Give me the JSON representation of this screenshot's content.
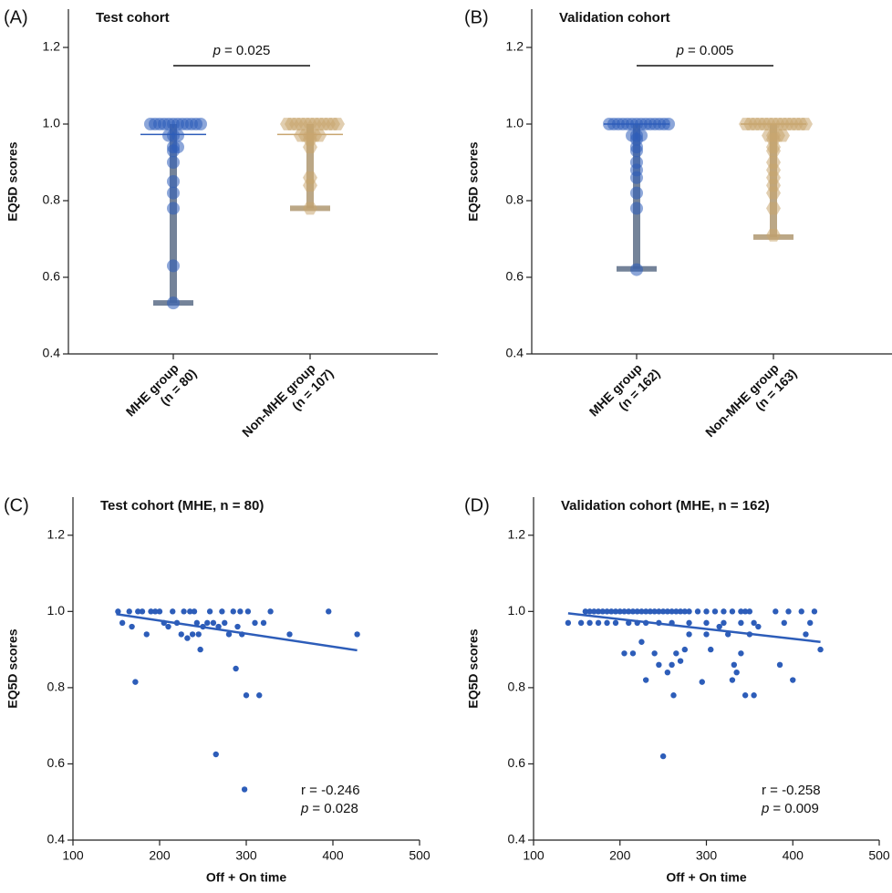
{
  "chart_data": [
    {
      "type": "strip",
      "panel_label": "(A)",
      "title": "Test cohort",
      "ylabel": "EQ5D scores",
      "categories": [
        [
          "MHE group",
          "(n = 80)"
        ],
        [
          "Non-MHE group",
          "(n = 107)"
        ]
      ],
      "ylim": [
        0.4,
        1.3
      ],
      "yticks": [
        0.4,
        0.6,
        0.8,
        {
          "value": 1,
          "label": "1.0"
        },
        1.2
      ],
      "comparison": {
        "symbol": "p",
        "text": "= 0.025"
      },
      "series": [
        {
          "color": "#2d5db9",
          "bar_color": "#5c6e88",
          "marker": "circle",
          "values": [
            1,
            1,
            1,
            1,
            1,
            1,
            1,
            1,
            1,
            1,
            1,
            1,
            0.97,
            0.97,
            0.97,
            0.94,
            0.94,
            0.93,
            0.9,
            0.85,
            0.82,
            0.78,
            0.63,
            0.533
          ],
          "center": 0.973,
          "low": 0.533,
          "high": 1
        },
        {
          "color": "#c8a56f",
          "bar_color": "#b09872",
          "marker": "hexagon",
          "values": [
            1,
            1,
            1,
            1,
            1,
            1,
            1,
            1,
            1,
            1,
            1,
            1,
            0.97,
            0.97,
            0.97,
            0.97,
            0.97,
            0.96,
            0.94,
            0.86,
            0.84,
            0.78
          ],
          "center": 0.973,
          "low": 0.78,
          "high": 1
        }
      ]
    },
    {
      "type": "strip",
      "panel_label": "(B)",
      "title": "Validation cohort",
      "ylabel": "EQ5D scores",
      "categories": [
        [
          "MHE group",
          "(n = 162)"
        ],
        [
          "Non-MHE group",
          "(n = 163)"
        ]
      ],
      "ylim": [
        0.4,
        1.3
      ],
      "yticks": [
        0.4,
        0.6,
        0.8,
        {
          "value": 1,
          "label": "1.0"
        },
        1.2
      ],
      "comparison": {
        "symbol": "p",
        "text": "= 0.005"
      },
      "series": [
        {
          "color": "#2d5db9",
          "bar_color": "#5c6e88",
          "marker": "circle",
          "values": [
            1,
            1,
            1,
            1,
            1,
            1,
            1,
            1,
            1,
            1,
            1,
            1,
            1,
            1,
            0.97,
            0.97,
            0.97,
            0.96,
            0.94,
            0.93,
            0.9,
            0.88,
            0.86,
            0.82,
            0.78,
            0.62
          ],
          "center": 1,
          "low": 0.622,
          "high": 1
        },
        {
          "color": "#c8a56f",
          "bar_color": "#b09872",
          "marker": "hexagon",
          "values": [
            1,
            1,
            1,
            1,
            1,
            1,
            1,
            1,
            1,
            1,
            1,
            1,
            1,
            1,
            0.97,
            0.97,
            0.97,
            0.97,
            0.96,
            0.94,
            0.93,
            0.9,
            0.88,
            0.86,
            0.84,
            0.82,
            0.78,
            0.71
          ],
          "center": 1,
          "low": 0.705,
          "high": 1
        }
      ]
    },
    {
      "type": "scatter",
      "panel_label": "(C)",
      "title": "Test cohort (MHE, n = 80)",
      "ylabel": "EQ5D scores",
      "xlabel": "Off + On time",
      "xlim": [
        100,
        500
      ],
      "xticks": [
        100,
        200,
        300,
        400,
        500
      ],
      "ylim": [
        0.4,
        1.3
      ],
      "yticks": [
        0.4,
        0.6,
        0.8,
        {
          "value": 1,
          "label": "1.0"
        },
        1.2
      ],
      "color": "#2d5db9",
      "x": [
        152,
        157,
        165,
        168,
        172,
        175,
        180,
        185,
        190,
        195,
        200,
        205,
        210,
        215,
        220,
        225,
        228,
        232,
        235,
        238,
        240,
        243,
        245,
        247,
        250,
        255,
        258,
        262,
        265,
        268,
        272,
        275,
        280,
        285,
        288,
        290,
        293,
        295,
        298,
        300,
        302,
        310,
        315,
        320,
        328,
        350,
        395,
        428
      ],
      "y": [
        1,
        0.97,
        1,
        0.96,
        0.815,
        1,
        1,
        0.94,
        1,
        1,
        1,
        0.97,
        0.96,
        1,
        0.97,
        0.94,
        1,
        0.93,
        1,
        0.94,
        1,
        0.97,
        0.94,
        0.9,
        0.96,
        0.97,
        1,
        0.97,
        0.625,
        0.96,
        1,
        0.97,
        0.94,
        1,
        0.85,
        0.96,
        1,
        0.94,
        0.533,
        0.78,
        1,
        0.97,
        0.78,
        0.97,
        1,
        0.94,
        1,
        0.94
      ],
      "fit": {
        "x": [
          150,
          428
        ],
        "y": [
          0.993,
          0.898
        ]
      },
      "r_label": "r = -0.246",
      "p_annotation": {
        "symbol": "p",
        "text": "= 0.028"
      }
    },
    {
      "type": "scatter",
      "panel_label": "(D)",
      "title": "Validation cohort (MHE, n = 162)",
      "ylabel": "EQ5D scores",
      "xlabel": "Off + On time",
      "xlim": [
        100,
        500
      ],
      "xticks": [
        100,
        200,
        300,
        400,
        500
      ],
      "ylim": [
        0.4,
        1.3
      ],
      "yticks": [
        0.4,
        0.6,
        0.8,
        {
          "value": 1,
          "label": "1.0"
        },
        1.2
      ],
      "color": "#2d5db9",
      "x": [
        160,
        165,
        170,
        175,
        180,
        185,
        190,
        195,
        200,
        205,
        210,
        215,
        220,
        225,
        230,
        235,
        240,
        245,
        250,
        255,
        260,
        265,
        270,
        275,
        280,
        290,
        300,
        310,
        320,
        330,
        340,
        345,
        350,
        380,
        395,
        410,
        425,
        140,
        155,
        165,
        175,
        185,
        195,
        210,
        220,
        230,
        245,
        260,
        280,
        300,
        320,
        340,
        355,
        390,
        420,
        205,
        215,
        225,
        230,
        240,
        245,
        250,
        255,
        260,
        262,
        265,
        270,
        275,
        280,
        295,
        300,
        305,
        315,
        325,
        330,
        332,
        335,
        340,
        345,
        350,
        355,
        360,
        385,
        400,
        415,
        432
      ],
      "y": [
        1,
        1,
        1,
        1,
        1,
        1,
        1,
        1,
        1,
        1,
        1,
        1,
        1,
        1,
        1,
        1,
        1,
        1,
        1,
        1,
        1,
        1,
        1,
        1,
        1,
        1,
        1,
        1,
        1,
        1,
        1,
        1,
        1,
        1,
        1,
        1,
        1,
        0.97,
        0.97,
        0.97,
        0.97,
        0.97,
        0.97,
        0.97,
        0.97,
        0.97,
        0.97,
        0.97,
        0.97,
        0.97,
        0.97,
        0.97,
        0.97,
        0.97,
        0.97,
        0.89,
        0.89,
        0.92,
        0.82,
        0.89,
        0.86,
        0.62,
        0.84,
        0.86,
        0.78,
        0.89,
        0.87,
        0.9,
        0.94,
        0.815,
        0.94,
        0.9,
        0.96,
        0.94,
        0.82,
        0.86,
        0.84,
        0.89,
        0.78,
        0.94,
        0.78,
        0.96,
        0.86,
        0.82,
        0.94,
        0.9
      ],
      "fit": {
        "x": [
          140,
          432
        ],
        "y": [
          0.995,
          0.92
        ]
      },
      "r_label": "r = -0.258",
      "p_annotation": {
        "symbol": "p",
        "text": "= 0.009"
      }
    }
  ]
}
